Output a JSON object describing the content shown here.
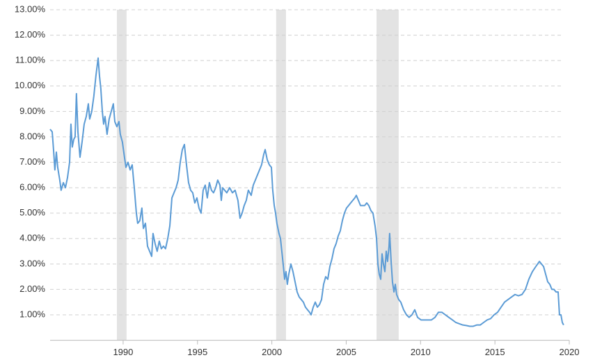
{
  "chart_data": {
    "type": "line",
    "color": "#5b9bd5",
    "grid": true,
    "shade_color": "#e3e3e3",
    "xlim": [
      1985.09,
      2020
    ],
    "xticks": [
      1990,
      1995,
      2000,
      2005,
      2010,
      2015,
      2020
    ],
    "ylim": [
      0,
      13
    ],
    "yticks": [
      {
        "value": 1,
        "label": "1.00%"
      },
      {
        "value": 2,
        "label": "2.00%"
      },
      {
        "value": 3,
        "label": "3.00%"
      },
      {
        "value": 4,
        "label": "4.00%"
      },
      {
        "value": 5,
        "label": "5.00%"
      },
      {
        "value": 6,
        "label": "6.00%"
      },
      {
        "value": 7,
        "label": "7.00%"
      },
      {
        "value": 8,
        "label": "8.00%"
      },
      {
        "value": 9,
        "label": "9.00%"
      },
      {
        "value": 10,
        "label": "10.00%"
      },
      {
        "value": 11,
        "label": "11.00%"
      },
      {
        "value": 12,
        "label": "12.00%"
      },
      {
        "value": 13,
        "label": "13.00%"
      }
    ],
    "shaded_ranges": [
      [
        1989.58,
        1990.23
      ],
      [
        2000.29,
        2000.95
      ],
      [
        2007.04,
        2008.53
      ]
    ],
    "x": [
      1985.09,
      1985.23,
      1985.32,
      1985.41,
      1985.51,
      1985.6,
      1985.74,
      1985.83,
      1985.98,
      1986.12,
      1986.26,
      1986.4,
      1986.49,
      1986.58,
      1986.68,
      1986.77,
      1986.86,
      1986.96,
      1987.1,
      1987.24,
      1987.38,
      1987.52,
      1987.66,
      1987.75,
      1987.89,
      1988.03,
      1988.17,
      1988.32,
      1988.41,
      1988.5,
      1988.6,
      1988.69,
      1988.78,
      1988.92,
      1989.06,
      1989.2,
      1989.34,
      1989.44,
      1989.58,
      1989.72,
      1989.81,
      1989.95,
      1990.09,
      1990.19,
      1990.33,
      1990.47,
      1990.61,
      1990.75,
      1990.89,
      1990.98,
      1991.12,
      1991.26,
      1991.36,
      1991.5,
      1991.64,
      1991.78,
      1991.92,
      1992.01,
      1992.15,
      1992.29,
      1992.43,
      1992.57,
      1992.71,
      1992.85,
      1993.0,
      1993.14,
      1993.28,
      1993.42,
      1993.56,
      1993.7,
      1993.84,
      1993.98,
      1994.12,
      1994.26,
      1994.4,
      1994.54,
      1994.68,
      1994.82,
      1994.96,
      1995.1,
      1995.24,
      1995.38,
      1995.52,
      1995.66,
      1995.8,
      1995.94,
      1996.08,
      1996.22,
      1996.36,
      1996.51,
      1996.6,
      1996.69,
      1996.83,
      1996.97,
      1997.16,
      1997.35,
      1997.53,
      1997.72,
      1997.86,
      1998.0,
      1998.14,
      1998.28,
      1998.42,
      1998.61,
      1998.75,
      1998.89,
      1999.03,
      1999.17,
      1999.31,
      1999.45,
      1999.55,
      1999.69,
      1999.83,
      1999.97,
      2000.06,
      2000.16,
      2000.25,
      2000.34,
      2000.48,
      2000.58,
      2000.67,
      2000.76,
      2000.86,
      2000.95,
      2001.04,
      2001.14,
      2001.28,
      2001.42,
      2001.56,
      2001.7,
      2001.84,
      2001.98,
      2002.12,
      2002.26,
      2002.4,
      2002.54,
      2002.64,
      2002.78,
      2002.92,
      2003.06,
      2003.2,
      2003.34,
      2003.48,
      2003.62,
      2003.76,
      2003.9,
      2004.04,
      2004.18,
      2004.32,
      2004.46,
      2004.6,
      2004.74,
      2004.88,
      2005.02,
      2005.16,
      2005.3,
      2005.44,
      2005.58,
      2005.68,
      2005.82,
      2005.96,
      2006.1,
      2006.24,
      2006.38,
      2006.52,
      2006.66,
      2006.8,
      2006.94,
      2007.04,
      2007.13,
      2007.22,
      2007.32,
      2007.41,
      2007.5,
      2007.6,
      2007.69,
      2007.78,
      2007.88,
      2007.92,
      2008.02,
      2008.11,
      2008.21,
      2008.3,
      2008.39,
      2008.53,
      2008.67,
      2008.86,
      2009.05,
      2009.23,
      2009.42,
      2009.61,
      2009.8,
      2010.03,
      2010.26,
      2010.5,
      2010.73,
      2010.97,
      2011.2,
      2011.43,
      2011.67,
      2011.9,
      2012.14,
      2012.37,
      2012.6,
      2012.84,
      2013.07,
      2013.31,
      2013.54,
      2013.77,
      2014.01,
      2014.24,
      2014.48,
      2014.71,
      2014.94,
      2015.18,
      2015.41,
      2015.65,
      2015.88,
      2016.11,
      2016.35,
      2016.58,
      2016.82,
      2017.05,
      2017.28,
      2017.52,
      2017.75,
      2017.99,
      2018.13,
      2018.27,
      2018.41,
      2018.55,
      2018.69,
      2018.83,
      2018.97,
      2019.11,
      2019.25,
      2019.34,
      2019.44,
      2019.53,
      2019.62
    ],
    "values": [
      8.3,
      8.2,
      7.5,
      6.7,
      7.4,
      6.8,
      6.3,
      5.9,
      6.2,
      6.0,
      6.4,
      7.0,
      8.5,
      7.6,
      7.9,
      8.0,
      9.7,
      8.2,
      7.2,
      7.8,
      8.5,
      8.8,
      9.3,
      8.7,
      9.0,
      9.6,
      10.4,
      11.1,
      10.4,
      9.9,
      9.0,
      8.5,
      8.8,
      8.1,
      8.7,
      9.0,
      9.3,
      8.6,
      8.4,
      8.6,
      8.1,
      7.8,
      7.2,
      6.8,
      7.0,
      6.7,
      6.9,
      6.0,
      5.0,
      4.6,
      4.7,
      5.2,
      4.4,
      4.6,
      3.7,
      3.5,
      3.3,
      4.2,
      3.8,
      3.5,
      3.9,
      3.6,
      3.7,
      3.6,
      4.0,
      4.5,
      5.6,
      5.8,
      6.0,
      6.3,
      7.0,
      7.5,
      7.7,
      6.9,
      6.2,
      5.9,
      5.8,
      5.4,
      5.6,
      5.2,
      5.0,
      5.9,
      6.1,
      5.6,
      6.2,
      5.9,
      5.8,
      6.0,
      6.3,
      6.1,
      5.5,
      6.0,
      5.9,
      5.8,
      6.0,
      5.8,
      5.9,
      5.5,
      4.8,
      5.0,
      5.3,
      5.5,
      5.9,
      5.7,
      6.1,
      6.3,
      6.5,
      6.7,
      6.9,
      7.3,
      7.5,
      7.1,
      6.9,
      6.8,
      5.9,
      5.3,
      5.0,
      4.6,
      4.2,
      4.0,
      3.5,
      3.0,
      2.4,
      2.7,
      2.2,
      2.6,
      3.0,
      2.7,
      2.3,
      1.9,
      1.7,
      1.6,
      1.5,
      1.3,
      1.2,
      1.1,
      1.0,
      1.3,
      1.5,
      1.3,
      1.4,
      1.6,
      2.2,
      2.5,
      2.4,
      2.9,
      3.2,
      3.6,
      3.8,
      4.1,
      4.3,
      4.7,
      5.0,
      5.2,
      5.3,
      5.4,
      5.5,
      5.6,
      5.7,
      5.5,
      5.3,
      5.3,
      5.3,
      5.4,
      5.3,
      5.1,
      5.0,
      4.5,
      4.0,
      3.0,
      2.6,
      2.4,
      3.4,
      3.0,
      2.7,
      3.5,
      3.1,
      3.7,
      4.2,
      3.1,
      2.3,
      1.9,
      2.2,
      1.8,
      1.6,
      1.5,
      1.2,
      1.0,
      0.9,
      1.0,
      1.2,
      0.9,
      0.8,
      0.8,
      0.8,
      0.8,
      0.9,
      1.1,
      1.1,
      1.0,
      0.9,
      0.8,
      0.7,
      0.65,
      0.6,
      0.58,
      0.55,
      0.55,
      0.6,
      0.6,
      0.7,
      0.8,
      0.85,
      1.0,
      1.1,
      1.3,
      1.5,
      1.6,
      1.7,
      1.8,
      1.75,
      1.8,
      2.0,
      2.4,
      2.7,
      2.9,
      3.1,
      3.0,
      2.9,
      2.6,
      2.3,
      2.2,
      2.0,
      2.0,
      1.9,
      1.9,
      1.0,
      1.0,
      0.7,
      0.6
    ]
  }
}
